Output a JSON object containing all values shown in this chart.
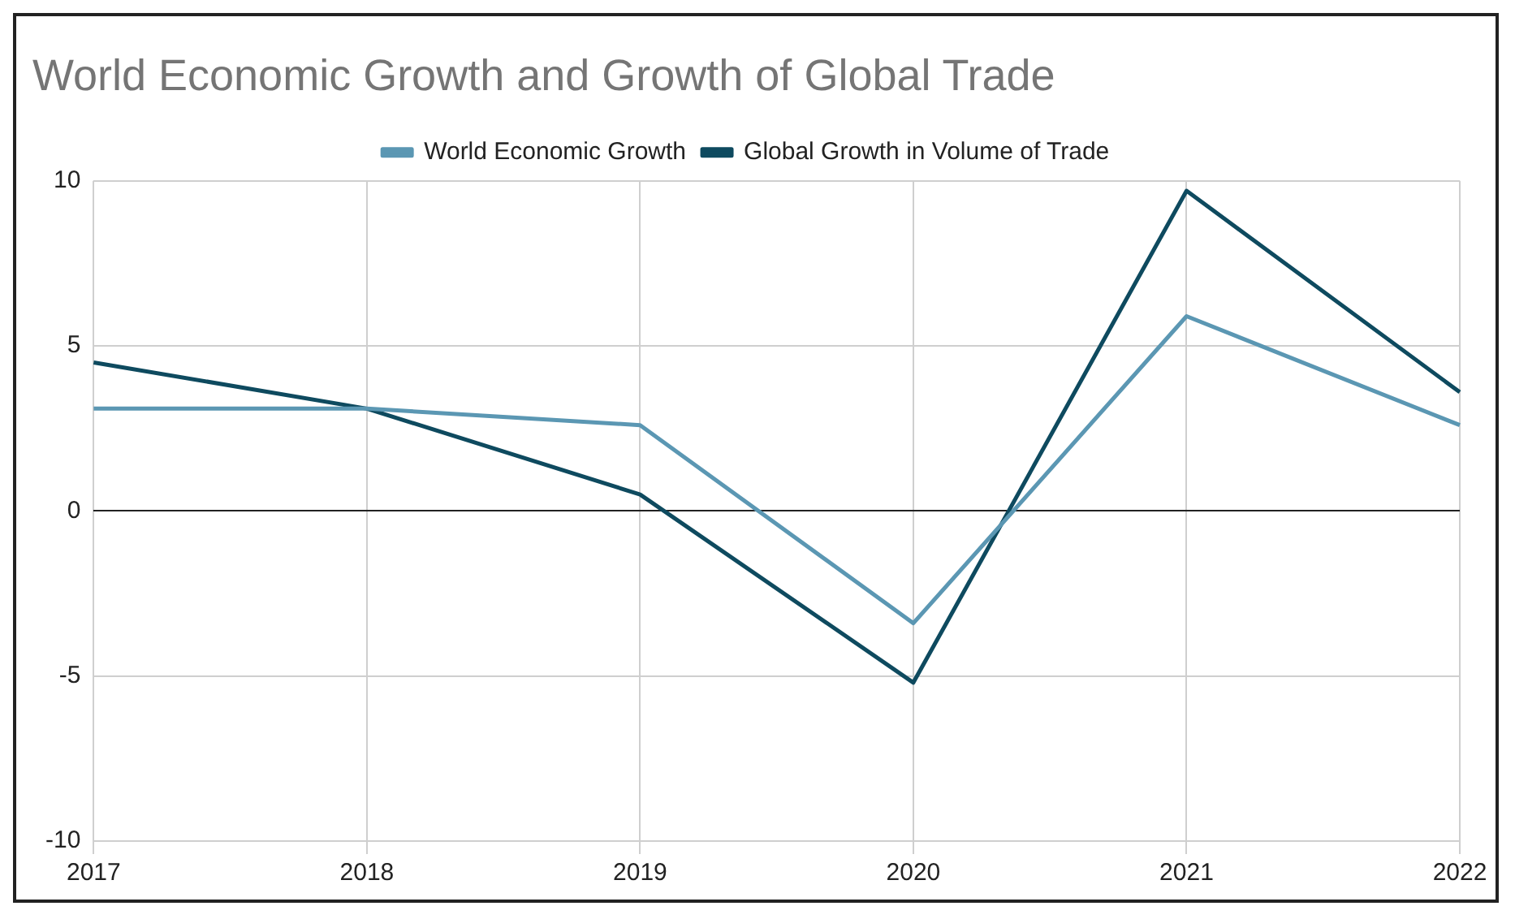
{
  "chart_data": {
    "type": "line",
    "title": "World Economic Growth and Growth of Global Trade",
    "categories": [
      "2017",
      "2018",
      "2019",
      "2020",
      "2021",
      "2022"
    ],
    "series": [
      {
        "name": "World Economic Growth",
        "color": "#5b97b3",
        "values": [
          3.1,
          3.1,
          2.6,
          -3.4,
          5.9,
          2.6
        ]
      },
      {
        "name": "Global Growth in Volume of Trade",
        "color": "#0e4a5f",
        "values": [
          4.5,
          3.1,
          0.5,
          -5.2,
          9.7,
          3.6
        ]
      }
    ],
    "ylim": [
      -10,
      10
    ],
    "yticks": [
      -10,
      -5,
      0,
      5,
      10
    ],
    "grid": true,
    "legend": "top",
    "marker": "none",
    "line_style": "solid"
  }
}
